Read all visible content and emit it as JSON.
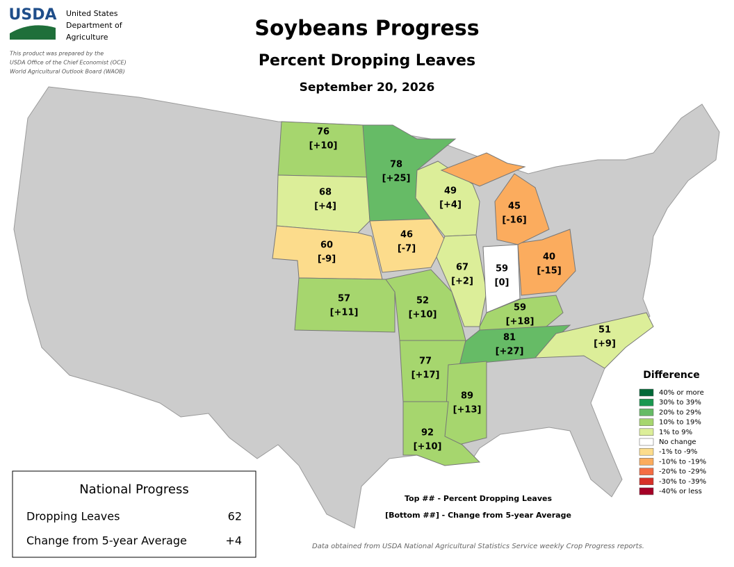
{
  "header": {
    "agency_short": "USDA",
    "agency_lines": [
      "United States",
      "Department of",
      "Agriculture"
    ],
    "note_lines": [
      "This product was prepared by the",
      "USDA Office of the Chief Economist (OCE)",
      "World Agricultural Outlook Board (WAOB)"
    ]
  },
  "title": "Soybeans Progress",
  "subtitle": "Percent Dropping Leaves",
  "date": "September 20, 2026",
  "states": [
    {
      "value": 76,
      "change": "[+10]",
      "color": "#a6d66e"
    },
    {
      "value": 68,
      "change": "[+4]",
      "color": "#dcee99"
    },
    {
      "value": 60,
      "change": "[-9]",
      "color": "#fcdc8c"
    },
    {
      "value": 57,
      "change": "[+11]",
      "color": "#a6d66e"
    },
    {
      "value": 78,
      "change": "[+25]",
      "color": "#66bb66"
    },
    {
      "value": 46,
      "change": "[-7]",
      "color": "#fcdc8c"
    },
    {
      "value": 52,
      "change": "[+10]",
      "color": "#a6d66e"
    },
    {
      "value": 49,
      "change": "[+4]",
      "color": "#dcee99"
    },
    {
      "value": 67,
      "change": "[+2]",
      "color": "#dcee99"
    },
    {
      "value": 59,
      "change": "[0]",
      "color": "#ffffff"
    },
    {
      "value": 40,
      "change": "[-15]",
      "color": "#fbac5e"
    },
    {
      "value": 45,
      "change": "[-16]",
      "color": "#fbac5e"
    },
    {
      "value": 59,
      "change": "[+18]",
      "color": "#a6d66e"
    },
    {
      "value": 81,
      "change": "[+27]",
      "color": "#66bb66"
    },
    {
      "value": 51,
      "change": "[+9]",
      "color": "#dcee99"
    },
    {
      "value": 77,
      "change": "[+17]",
      "color": "#a6d66e"
    },
    {
      "value": 89,
      "change": "[+13]",
      "color": "#a6d66e"
    },
    {
      "value": 92,
      "change": "[+10]",
      "color": "#a6d66e"
    }
  ],
  "legend": {
    "title": "Difference",
    "items": [
      {
        "label": "40% or more",
        "color": "#006837"
      },
      {
        "label": "30% to 39%",
        "color": "#1a9850"
      },
      {
        "label": "20% to 29%",
        "color": "#66bb66"
      },
      {
        "label": "10% to 19%",
        "color": "#a6d66e"
      },
      {
        "label": "1% to 9%",
        "color": "#dcee99"
      },
      {
        "label": "No change",
        "color": "#ffffff"
      },
      {
        "label": "-1% to -9%",
        "color": "#fcdc8c"
      },
      {
        "label": "-10% to -19%",
        "color": "#fbac5e"
      },
      {
        "label": "-20% to -29%",
        "color": "#f46d43"
      },
      {
        "label": "-30% to -39%",
        "color": "#d73027"
      },
      {
        "label": "-40% or less",
        "color": "#a50026"
      }
    ]
  },
  "national": {
    "title": "National Progress",
    "rows": [
      {
        "label": "Dropping Leaves",
        "value": "62"
      },
      {
        "label": "Change from 5-year Average",
        "value": "+4"
      }
    ]
  },
  "key_lines": [
    "Top ## - Percent Dropping Leaves",
    "[Bottom ##] - Change from 5-year Average"
  ],
  "source": "Data obtained from USDA National Agricultural Statistics Service weekly Crop Progress reports."
}
